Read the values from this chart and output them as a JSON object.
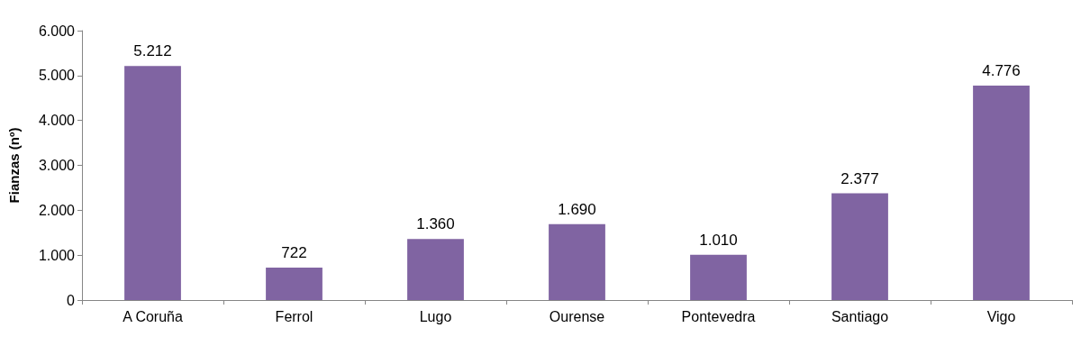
{
  "chart_data": {
    "type": "bar",
    "ylabel": "Fianzas (nº)",
    "categories": [
      "A Coruña",
      "Ferrol",
      "Lugo",
      "Ourense",
      "Pontevedra",
      "Santiago",
      "Vigo"
    ],
    "values": [
      5212,
      722,
      1360,
      1690,
      1010,
      2377,
      4776
    ],
    "value_labels": [
      "5.212",
      "722",
      "1.360",
      "1.690",
      "1.010",
      "2.377",
      "4.776"
    ],
    "color": "#8064a2",
    "ylim": [
      0,
      6000
    ],
    "yticks": [
      0,
      {
        "value": 1000,
        "label": "1.000"
      },
      {
        "value": 2000,
        "label": "2.000"
      },
      {
        "value": 3000,
        "label": "3.000"
      },
      {
        "value": 4000,
        "label": "4.000"
      },
      {
        "value": 5000,
        "label": "5.000"
      },
      {
        "value": 6000,
        "label": "6.000"
      }
    ]
  }
}
